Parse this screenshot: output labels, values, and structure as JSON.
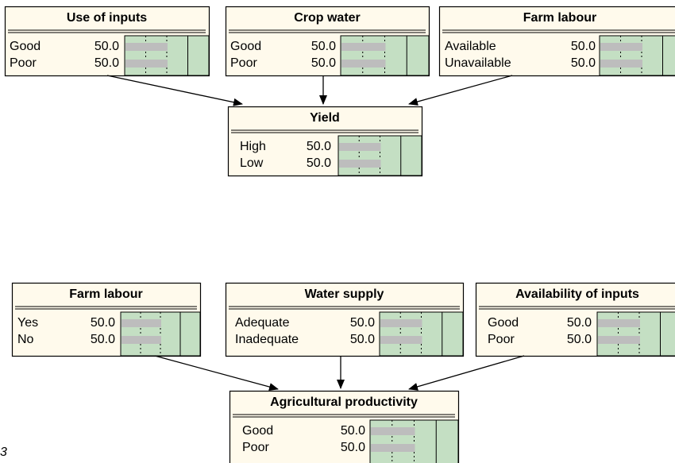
{
  "nodes": [
    {
      "title": "Use of inputs",
      "states": [
        {
          "name": "Good",
          "value": 50,
          "label": "50.0"
        },
        {
          "name": "Poor",
          "value": 50,
          "label": "50.0"
        }
      ]
    },
    {
      "title": "Crop water",
      "states": [
        {
          "name": "Good",
          "value": 50,
          "label": "50.0"
        },
        {
          "name": "Poor",
          "value": 50,
          "label": "50.0"
        }
      ]
    },
    {
      "title": "Farm labour",
      "states": [
        {
          "name": "Available",
          "value": 50,
          "label": "50.0"
        },
        {
          "name": "Unavailable",
          "value": 50,
          "label": "50.0"
        }
      ]
    },
    {
      "title": "Yield",
      "states": [
        {
          "name": "High",
          "value": 50,
          "label": "50.0"
        },
        {
          "name": "Low",
          "value": 50,
          "label": "50.0"
        }
      ]
    },
    {
      "title": "Farm labour",
      "states": [
        {
          "name": "Yes",
          "value": 50,
          "label": "50.0"
        },
        {
          "name": "No",
          "value": 50,
          "label": "50.0"
        }
      ]
    },
    {
      "title": "Water supply",
      "states": [
        {
          "name": "Adequate",
          "value": 50,
          "label": "50.0"
        },
        {
          "name": "Inadequate",
          "value": 50,
          "label": "50.0"
        }
      ]
    },
    {
      "title": "Availability of inputs",
      "states": [
        {
          "name": "Good",
          "value": 50,
          "label": "50.0"
        },
        {
          "name": "Poor",
          "value": 50,
          "label": "50.0"
        }
      ]
    },
    {
      "title": "Agricultural productivity",
      "states": [
        {
          "name": "Good",
          "value": 50,
          "label": "50.0"
        },
        {
          "name": "Poor",
          "value": 50,
          "label": "50.0"
        }
      ]
    }
  ],
  "caption": "3"
}
